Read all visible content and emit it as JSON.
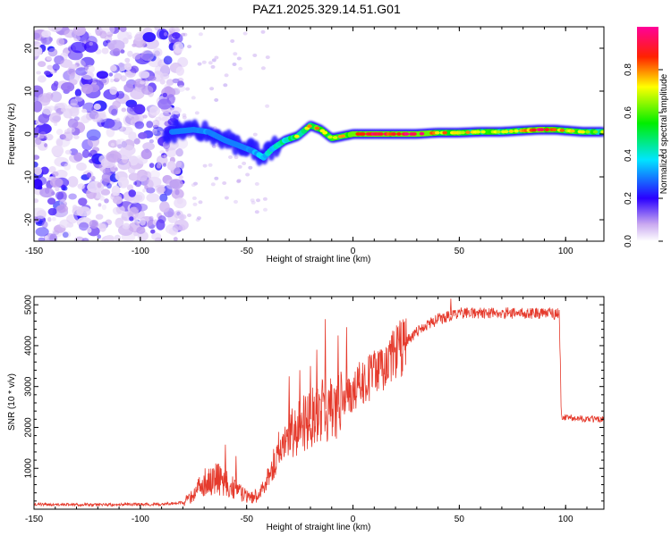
{
  "figure": {
    "title": "PAZ1.2025.329.14.51.G01"
  },
  "chart_data": [
    {
      "type": "heatmap",
      "title": "PAZ1.2025.329.14.51.G01",
      "xlabel": "Height of straight line (km)",
      "ylabel": "Frequency (Hz)",
      "xlim": [
        -150,
        118
      ],
      "ylim": [
        -25,
        25
      ],
      "xticks": [
        -150,
        -100,
        -50,
        0,
        50,
        100
      ],
      "yticks": [
        -20,
        -10,
        0,
        10,
        20
      ],
      "colorbar": {
        "label": "Normalized spectral amplitude",
        "range": [
          0,
          1
        ],
        "ticks": [
          0.0,
          0.2,
          0.4,
          0.6,
          0.8
        ]
      },
      "noise_region_x": [
        -150,
        -80
      ],
      "ridge": [
        {
          "x": -85,
          "y": 0.5,
          "amp": 0.25
        },
        {
          "x": -75,
          "y": 1.0,
          "amp": 0.3
        },
        {
          "x": -68,
          "y": 0.5,
          "amp": 0.35
        },
        {
          "x": -60,
          "y": -1.5,
          "amp": 0.3
        },
        {
          "x": -52,
          "y": -3.0,
          "amp": 0.25
        },
        {
          "x": -47,
          "y": -4.0,
          "amp": 0.4
        },
        {
          "x": -42,
          "y": -5.5,
          "amp": 0.5
        },
        {
          "x": -38,
          "y": -3.5,
          "amp": 0.55
        },
        {
          "x": -32,
          "y": -1.5,
          "amp": 0.6
        },
        {
          "x": -26,
          "y": -0.5,
          "amp": 0.65
        },
        {
          "x": -20,
          "y": 2.0,
          "amp": 0.7
        },
        {
          "x": -15,
          "y": 1.0,
          "amp": 0.75
        },
        {
          "x": -10,
          "y": -1.0,
          "amp": 0.7
        },
        {
          "x": -5,
          "y": -0.5,
          "amp": 0.75
        },
        {
          "x": 0,
          "y": 0.0,
          "amp": 0.85
        },
        {
          "x": 10,
          "y": 0.0,
          "amp": 0.9
        },
        {
          "x": 20,
          "y": 0.0,
          "amp": 0.85
        },
        {
          "x": 30,
          "y": 0.0,
          "amp": 0.95
        },
        {
          "x": 40,
          "y": 0.3,
          "amp": 0.75
        },
        {
          "x": 50,
          "y": 0.3,
          "amp": 0.7
        },
        {
          "x": 60,
          "y": 0.5,
          "amp": 0.7
        },
        {
          "x": 70,
          "y": 0.5,
          "amp": 0.65
        },
        {
          "x": 80,
          "y": 0.8,
          "amp": 0.7
        },
        {
          "x": 88,
          "y": 1.0,
          "amp": 0.9
        },
        {
          "x": 95,
          "y": 1.0,
          "amp": 0.75
        },
        {
          "x": 100,
          "y": 0.8,
          "amp": 0.7
        },
        {
          "x": 108,
          "y": 0.5,
          "amp": 0.7
        },
        {
          "x": 115,
          "y": 0.5,
          "amp": 0.65
        }
      ]
    },
    {
      "type": "line",
      "xlabel": "Height of straight line (km)",
      "ylabel": "SNR (10 * v/v)",
      "xlim": [
        -150,
        118
      ],
      "ylim": [
        0,
        5200
      ],
      "xticks": [
        -150,
        -100,
        -50,
        0,
        50,
        100
      ],
      "yticks": [
        1000,
        2000,
        3000,
        4000,
        5000
      ],
      "series": [
        {
          "name": "SNR",
          "color": "#e53a2c",
          "x": [
            -150,
            -120,
            -90,
            -80,
            -75,
            -70,
            -65,
            -60,
            -55,
            -50,
            -45,
            -40,
            -35,
            -30,
            -25,
            -20,
            -15,
            -10,
            -5,
            0,
            5,
            10,
            15,
            20,
            25,
            30,
            40,
            50,
            60,
            70,
            80,
            90,
            97,
            98,
            100,
            110,
            118
          ],
          "y": [
            120,
            110,
            120,
            160,
            350,
            650,
            800,
            650,
            500,
            300,
            320,
            750,
            1400,
            1900,
            2000,
            2200,
            2400,
            2500,
            2600,
            2900,
            3100,
            3300,
            3500,
            3800,
            4100,
            4350,
            4650,
            4800,
            4800,
            4800,
            4800,
            4780,
            4780,
            2250,
            2250,
            2200,
            2200
          ]
        }
      ],
      "spikes": [
        {
          "x": -60,
          "y": 1580
        },
        {
          "x": -55,
          "y": 1300
        },
        {
          "x": -30,
          "y": 3250
        },
        {
          "x": -25,
          "y": 3400
        },
        {
          "x": -20,
          "y": 3500
        },
        {
          "x": -17,
          "y": 3900
        },
        {
          "x": -13,
          "y": 4650
        },
        {
          "x": -7,
          "y": 4250
        },
        {
          "x": -3,
          "y": 4450
        },
        {
          "x": 3,
          "y": 3600
        },
        {
          "x": 46,
          "y": 5150
        }
      ]
    }
  ]
}
